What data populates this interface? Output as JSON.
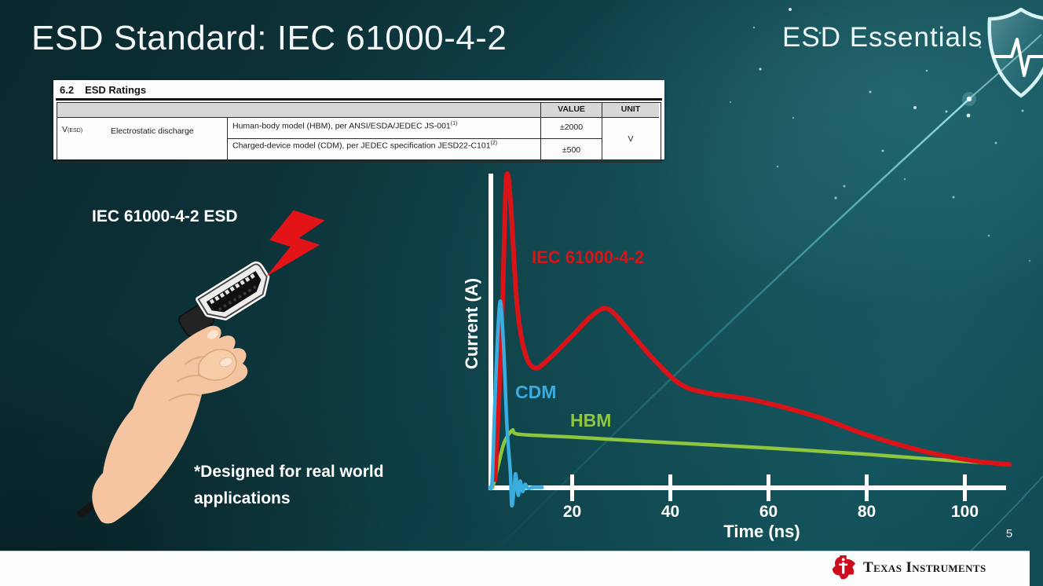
{
  "slide": {
    "title": "ESD Standard: IEC 61000-4-2",
    "brand": "ESD Essentials",
    "page_number": "5",
    "footer_logo": "Texas Instruments"
  },
  "table": {
    "section": "6.2",
    "section_title": "ESD Ratings",
    "headers": {
      "value": "VALUE",
      "unit": "UNIT"
    },
    "param_symbol": "V",
    "param_symbol_sub": "(ESD)",
    "param_name": "Electrostatic discharge",
    "rows": [
      {
        "desc": "Human-body model (HBM), per ANSI/ESDA/JEDEC JS-001",
        "sup": "(1)",
        "value": "±2000"
      },
      {
        "desc": "Charged-device model (CDM), per JEDEC specification JESD22-C101",
        "sup": "(2)",
        "value": "±500"
      }
    ],
    "unit": "V"
  },
  "illustration": {
    "label": "IEC 61000-4-2 ESD",
    "note": "*Designed for real world applications"
  },
  "chart_data": {
    "type": "line",
    "title": "",
    "xlabel": "Time (ns)",
    "ylabel": "Current (A)",
    "x_ticks": [
      20,
      40,
      60,
      80,
      100
    ],
    "x_range": [
      0,
      110
    ],
    "ylim": [
      -0.08,
      1.05
    ],
    "y_axis_numeric": false,
    "grid": false,
    "legend_position": "inline-labels",
    "series": [
      {
        "name": "IEC 61000-4-2",
        "color": "#da1318",
        "points": [
          [
            4.3,
            0.025
          ],
          [
            5.6,
            0.48
          ],
          [
            6.4,
            0.93
          ],
          [
            6.9,
            1.0
          ],
          [
            7.5,
            0.9
          ],
          [
            8.8,
            0.58
          ],
          [
            10.4,
            0.43
          ],
          [
            12.5,
            0.382
          ],
          [
            15.5,
            0.415
          ],
          [
            20.3,
            0.49
          ],
          [
            24.3,
            0.553
          ],
          [
            27.4,
            0.57
          ],
          [
            31.5,
            0.503
          ],
          [
            36.3,
            0.415
          ],
          [
            41.9,
            0.332
          ],
          [
            47.5,
            0.302
          ],
          [
            57.1,
            0.279
          ],
          [
            69.9,
            0.226
          ],
          [
            80,
            0.168
          ],
          [
            92.3,
            0.113
          ],
          [
            101.9,
            0.085
          ],
          [
            109.1,
            0.073
          ]
        ]
      },
      {
        "name": "CDM",
        "color": "#39ace0",
        "points": [
          [
            3.2,
            0
          ],
          [
            3.7,
            0.02
          ],
          [
            4.2,
            0.25
          ],
          [
            4.8,
            0.48
          ],
          [
            5.4,
            0.595
          ],
          [
            6.1,
            0.43
          ],
          [
            6.7,
            0.2
          ],
          [
            7.4,
            0.05
          ],
          [
            7.7,
            -0.058
          ],
          [
            8.2,
            0
          ],
          [
            8.5,
            0.043
          ],
          [
            9,
            -0.025
          ],
          [
            9.4,
            0.02
          ],
          [
            9.9,
            -0.013
          ],
          [
            10.4,
            0.01
          ],
          [
            11,
            -0.003
          ],
          [
            12,
            0
          ],
          [
            13.9,
            0
          ]
        ]
      },
      {
        "name": "HBM",
        "color": "#8dc63f",
        "points": [
          [
            3.8,
            0
          ],
          [
            5,
            0.075
          ],
          [
            6.2,
            0.146
          ],
          [
            7.8,
            0.183
          ],
          [
            8.3,
            0.173
          ],
          [
            10.7,
            0.168
          ],
          [
            20,
            0.161
          ],
          [
            40,
            0.143
          ],
          [
            60,
            0.126
          ],
          [
            80,
            0.106
          ],
          [
            95.5,
            0.088
          ],
          [
            105.1,
            0.078
          ],
          [
            108.8,
            0.075
          ]
        ]
      }
    ]
  },
  "colors": {
    "background_teal": "#0e3d44",
    "iec_red": "#da1318",
    "cdm_blue": "#39ace0",
    "hbm_green": "#8dc63f",
    "axis_white": "#ffffff",
    "footer_white": "#fcfdfd",
    "ti_logo_red": "#cc0b1c",
    "bolt_red": "#e21418"
  }
}
